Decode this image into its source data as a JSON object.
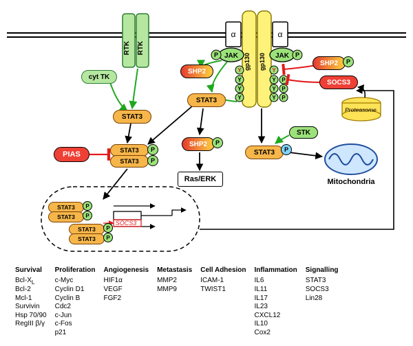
{
  "colors": {
    "membrane": "#000000",
    "rtk_fill": "#b5e7a0",
    "rtk_stroke": "#2e7d32",
    "stat_fill": "#f6b64a",
    "stat_stroke": "#7a3e00",
    "p_green": "#9be27a",
    "p_blue": "#7fd3ff",
    "shp2_grad_a": "#e43b2f",
    "shp2_grad_b": "#ffd23f",
    "pias_fill": "#ef4036",
    "socs3_fill": "#ef4036",
    "raserk_fill": "#ffffff",
    "gp130_fill": "#fff27a",
    "gp130_stroke": "#8a7a00",
    "alpha_fill": "#ffffff",
    "proteasome_fill": "#ffe357",
    "proteasome_stroke": "#a07c00",
    "mito_fill": "#cfe6ff",
    "mito_stroke": "#1f4e9c",
    "jak_fill": "#9be27a",
    "y_fill": "#9be27a",
    "stk_fill": "#9be27a",
    "socs3_text": "#e43b2f",
    "green_arrow": "#1fa81f",
    "red_arrow": "#e21b1b"
  },
  "labels": {
    "rtk": "RTK",
    "cytTK": "cyt TK",
    "stat3": "STAT3",
    "pias": "PIAS",
    "shp2": "SHP2",
    "raserk": "Ras/ERK",
    "socs3": "SOCS3",
    "socs3_gene": "SOCS3",
    "jak": "JAK",
    "alpha": "α",
    "gp130": "gp130",
    "Y": "Y",
    "P": "P",
    "stk": "STK",
    "mito": "Mitochondria",
    "proteasome": "Proteasome"
  },
  "gene_table": {
    "headers": [
      "Survival",
      "Proliferation",
      "Angiogenesis",
      "Metastasis",
      "Cell Adhesion",
      "Inflammation",
      "Signalling"
    ],
    "cols": [
      [
        "Bcl-X_L",
        "Bcl-2",
        "Mcl-1",
        "Survivin",
        "Hsp 70/90",
        "RegIII β/γ"
      ],
      [
        "c-Myc",
        "Cyclin D1",
        "Cyclin B",
        "Cdc2",
        "c-Jun",
        "c-Fos",
        "p21"
      ],
      [
        "HIF1α",
        "VEGF",
        "FGF2"
      ],
      [
        "MMP2",
        "MMP9"
      ],
      [
        "ICAM-1",
        "TWIST1"
      ],
      [
        "IL6",
        "IL11",
        "IL17",
        "IL23",
        "CXCL12",
        "IL10",
        "Cox2"
      ],
      [
        "STAT3",
        "SOCS3",
        "Lin28"
      ]
    ]
  }
}
